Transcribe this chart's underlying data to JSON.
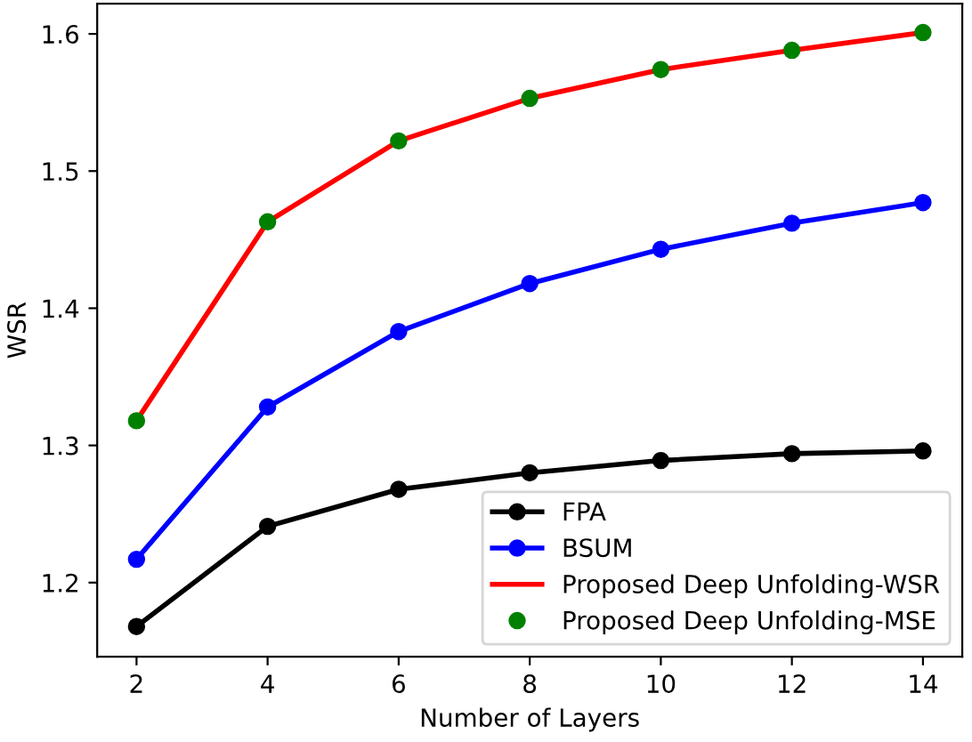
{
  "chart_data": {
    "type": "line",
    "xlabel": "Number of Layers",
    "ylabel": "WSR",
    "x": [
      2,
      4,
      6,
      8,
      10,
      12,
      14
    ],
    "series": [
      {
        "name": "FPA",
        "color": "#000000",
        "marker": "circle",
        "values": [
          1.168,
          1.241,
          1.268,
          1.28,
          1.289,
          1.294,
          1.296
        ]
      },
      {
        "name": "BSUM",
        "color": "#0000ff",
        "marker": "circle",
        "values": [
          1.217,
          1.328,
          1.383,
          1.418,
          1.443,
          1.462,
          1.477
        ]
      },
      {
        "name": "Proposed Deep Unfolding-WSR",
        "color": "#ff0000",
        "marker": "none",
        "values": [
          1.318,
          1.463,
          1.522,
          1.553,
          1.574,
          1.588,
          1.601
        ]
      },
      {
        "name": "Proposed Deep Unfolding-MSE",
        "type": "scatter",
        "color": "#008000",
        "marker": "circle",
        "values": [
          1.318,
          1.463,
          1.522,
          1.553,
          1.574,
          1.588,
          1.601
        ]
      }
    ],
    "xlim": [
      1.4,
      14.6
    ],
    "ylim": [
      1.146,
      1.622
    ],
    "xticks": [
      2,
      4,
      6,
      8,
      10,
      12,
      14
    ],
    "yticks": [
      1.2,
      1.3,
      1.4,
      1.5,
      1.6
    ],
    "grid": false,
    "legend": "bottom right"
  }
}
